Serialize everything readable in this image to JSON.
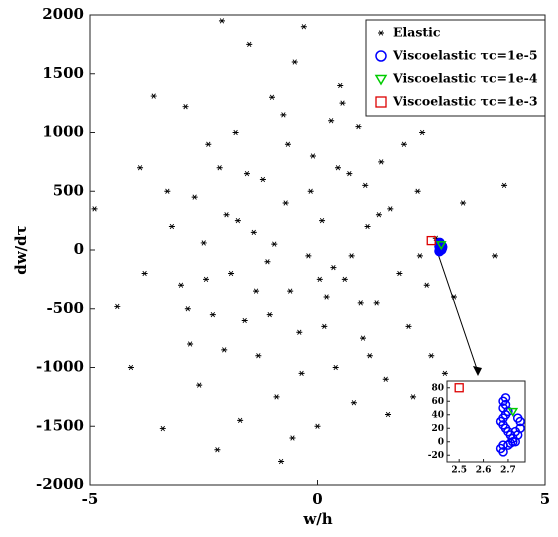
{
  "chart_data": {
    "type": "scatter",
    "xlabel": "w/h",
    "ylabel": "dw/dτ",
    "xlim": [
      -5,
      5
    ],
    "ylim": [
      -2000,
      2000
    ],
    "xticks": [
      -5,
      0,
      5
    ],
    "yticks": [
      -2000,
      -1500,
      -1000,
      -500,
      0,
      500,
      1000,
      1500,
      2000
    ],
    "legend": "upper right",
    "series": [
      {
        "name": "Elastic",
        "color": "#000000",
        "marker": "asterisk",
        "x": [
          -4.9,
          -4.4,
          -4.1,
          -3.9,
          -3.6,
          -3.4,
          -3.2,
          -3.0,
          -2.9,
          -2.8,
          -2.7,
          -2.6,
          -2.5,
          -2.4,
          -2.3,
          -2.2,
          -2.1,
          -2.0,
          -1.9,
          -1.8,
          -1.7,
          -1.6,
          -1.5,
          -1.4,
          -1.3,
          -1.2,
          -1.1,
          -1.0,
          -0.9,
          -0.8,
          -0.7,
          -0.6,
          -0.5,
          -0.4,
          -0.3,
          -0.2,
          -0.1,
          0.0,
          0.1,
          0.2,
          0.3,
          0.4,
          0.5,
          0.6,
          0.7,
          0.8,
          0.9,
          1.0,
          1.1,
          1.2,
          1.3,
          1.4,
          1.5,
          1.6,
          1.7,
          1.8,
          1.9,
          2.0,
          2.1,
          2.2,
          2.3,
          2.4,
          2.5,
          2.6,
          2.8,
          3.0,
          3.2,
          3.5,
          3.7,
          4.1,
          3.9,
          -3.8,
          -3.3,
          -2.85,
          -2.45,
          -2.15,
          -1.75,
          -1.35,
          -0.95,
          -0.65,
          -0.35,
          -0.15,
          0.15,
          0.35,
          0.55,
          0.75,
          0.95,
          1.15,
          1.35,
          1.55,
          -1.05,
          -1.55,
          -2.05,
          0.45,
          -0.55,
          1.85,
          2.25,
          -0.75,
          0.05,
          1.05
        ],
        "y": [
          350,
          -480,
          -1000,
          700,
          1310,
          -1520,
          200,
          -300,
          1220,
          -800,
          450,
          -1150,
          60,
          900,
          -550,
          -1700,
          1950,
          300,
          -200,
          1000,
          -1450,
          -600,
          1750,
          150,
          -900,
          600,
          -100,
          1300,
          -1250,
          -1800,
          400,
          -350,
          1600,
          -700,
          1900,
          -50,
          800,
          -1500,
          250,
          -400,
          1100,
          -1000,
          1400,
          -250,
          650,
          -1300,
          1050,
          -750,
          200,
          1500,
          -450,
          750,
          -1100,
          350,
          1200,
          -200,
          900,
          -650,
          -1250,
          500,
          1000,
          -300,
          -900,
          100,
          -1050,
          -400,
          400,
          -1150,
          -1350,
          550,
          -50,
          -200,
          500,
          -500,
          -250,
          700,
          250,
          -350,
          50,
          900,
          -1050,
          500,
          -650,
          -150,
          1250,
          -50,
          -450,
          -900,
          300,
          -1400,
          -550,
          650,
          -850,
          700,
          -1600,
          1600,
          -50,
          1150,
          -250,
          550
        ]
      },
      {
        "name": "Viscoelastic τc=1e-5",
        "color": "#0000ff",
        "marker": "circle",
        "x": [
          2.68,
          2.69,
          2.68,
          2.7,
          2.69,
          2.68,
          2.67,
          2.68,
          2.69,
          2.7,
          2.71,
          2.72,
          2.73,
          2.74,
          2.75,
          2.75,
          2.74,
          2.73,
          2.72,
          2.7,
          2.68,
          2.67,
          2.68,
          2.69,
          2.71
        ],
        "y": [
          60,
          55,
          50,
          45,
          40,
          35,
          30,
          25,
          20,
          15,
          10,
          5,
          0,
          10,
          20,
          30,
          35,
          15,
          0,
          -5,
          -5,
          -10,
          -15,
          65,
          -2
        ]
      },
      {
        "name": "Viscoelastic τc=1e-4",
        "color": "#00cc00",
        "marker": "triangle",
        "x": [
          2.72
        ],
        "y": [
          45
        ]
      },
      {
        "name": "Viscoelastic τc=1e-3",
        "color": "#dd0000",
        "marker": "square",
        "x": [
          2.5
        ],
        "y": [
          80
        ]
      }
    ],
    "inset": {
      "xlim": [
        2.45,
        2.77
      ],
      "ylim": [
        -30,
        90
      ],
      "xticks": [
        2.5,
        2.6,
        2.7
      ],
      "yticks": [
        -20,
        0,
        20,
        40,
        60,
        80
      ]
    }
  }
}
